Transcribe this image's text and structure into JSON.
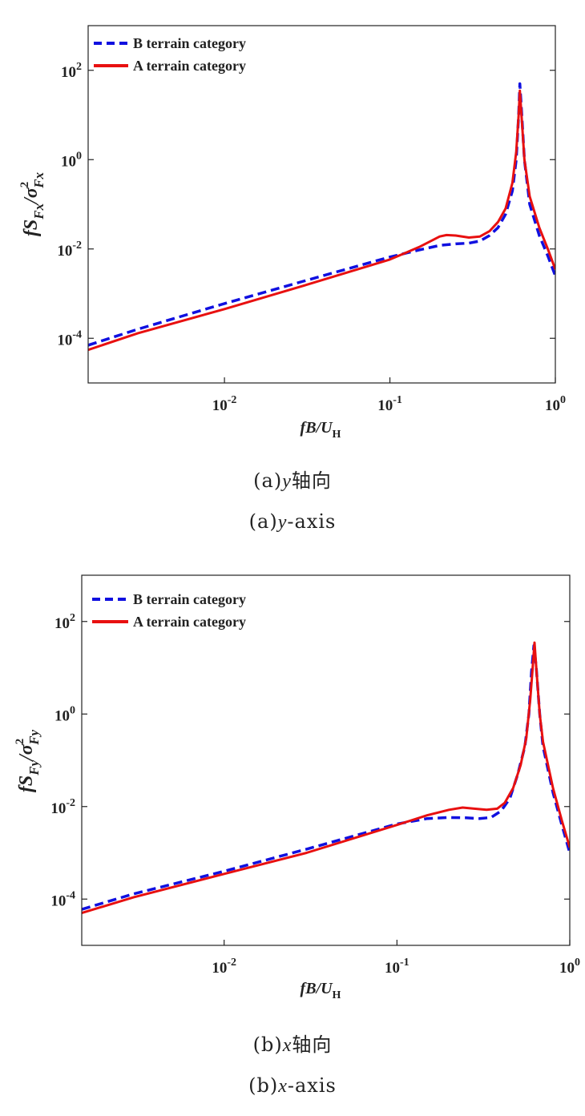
{
  "chart_data": [
    {
      "type": "line",
      "xscale": "log",
      "yscale": "log",
      "xlim": [
        0.0015,
        1.0
      ],
      "ylim": [
        1e-05,
        1000
      ],
      "x_ticks": [
        0.01,
        0.1,
        1
      ],
      "y_ticks": [
        0.0001,
        0.01,
        1,
        100
      ],
      "x_tick_labels": [
        {
          "base": "10",
          "exp": "-2"
        },
        {
          "base": "10",
          "exp": "-1"
        },
        {
          "base": "10",
          "exp": "0"
        }
      ],
      "y_tick_labels": [
        {
          "base": "10",
          "exp": "-4"
        },
        {
          "base": "10",
          "exp": "-2"
        },
        {
          "base": "10",
          "exp": "0"
        },
        {
          "base": "10",
          "exp": "2"
        }
      ],
      "xlabel": {
        "main": "fB/U",
        "sub": "H"
      },
      "ylabel": {
        "a": "fS",
        "b": "Fx",
        "c": "/σ",
        "d": "2",
        "e": "Fx"
      },
      "legend": {
        "position": "top-left",
        "entries": [
          "B terrain category",
          "A terrain category"
        ]
      },
      "grid": false,
      "series": [
        {
          "name": "B terrain category",
          "color": "#1010e0",
          "style": "dashed",
          "points": [
            [
              0.0015,
              7e-05
            ],
            [
              0.003,
              0.00016
            ],
            [
              0.01,
              0.0006
            ],
            [
              0.03,
              0.0019
            ],
            [
              0.1,
              0.0066
            ],
            [
              0.15,
              0.0095
            ],
            [
              0.2,
              0.012
            ],
            [
              0.25,
              0.013
            ],
            [
              0.3,
              0.0135
            ],
            [
              0.35,
              0.015
            ],
            [
              0.4,
              0.02
            ],
            [
              0.45,
              0.03
            ],
            [
              0.5,
              0.06
            ],
            [
              0.55,
              0.2
            ],
            [
              0.58,
              1.0
            ],
            [
              0.6,
              10
            ],
            [
              0.61,
              50
            ],
            [
              0.62,
              20
            ],
            [
              0.65,
              1.0
            ],
            [
              0.7,
              0.1
            ],
            [
              0.8,
              0.02
            ],
            [
              0.9,
              0.007
            ],
            [
              1.0,
              0.0025
            ]
          ]
        },
        {
          "name": "A terrain category",
          "color": "#e81010",
          "style": "solid",
          "points": [
            [
              0.0015,
              5.5e-05
            ],
            [
              0.003,
              0.00013
            ],
            [
              0.01,
              0.00045
            ],
            [
              0.03,
              0.0015
            ],
            [
              0.1,
              0.0058
            ],
            [
              0.15,
              0.011
            ],
            [
              0.2,
              0.019
            ],
            [
              0.22,
              0.0205
            ],
            [
              0.25,
              0.02
            ],
            [
              0.3,
              0.018
            ],
            [
              0.35,
              0.019
            ],
            [
              0.4,
              0.025
            ],
            [
              0.45,
              0.04
            ],
            [
              0.5,
              0.08
            ],
            [
              0.55,
              0.3
            ],
            [
              0.58,
              1.5
            ],
            [
              0.6,
              10
            ],
            [
              0.61,
              35
            ],
            [
              0.62,
              15
            ],
            [
              0.65,
              1.0
            ],
            [
              0.7,
              0.15
            ],
            [
              0.8,
              0.03
            ],
            [
              0.9,
              0.01
            ],
            [
              1.0,
              0.0035
            ]
          ]
        }
      ]
    },
    {
      "type": "line",
      "xscale": "log",
      "yscale": "log",
      "xlim": [
        0.0015,
        1.0
      ],
      "ylim": [
        1e-05,
        1000
      ],
      "x_ticks": [
        0.01,
        0.1,
        1
      ],
      "y_ticks": [
        0.0001,
        0.01,
        1,
        100
      ],
      "x_tick_labels": [
        {
          "base": "10",
          "exp": "-2"
        },
        {
          "base": "10",
          "exp": "-1"
        },
        {
          "base": "10",
          "exp": "0"
        }
      ],
      "y_tick_labels": [
        {
          "base": "10",
          "exp": "-4"
        },
        {
          "base": "10",
          "exp": "-2"
        },
        {
          "base": "10",
          "exp": "0"
        },
        {
          "base": "10",
          "exp": "2"
        }
      ],
      "xlabel": {
        "main": "fB/U",
        "sub": "H"
      },
      "ylabel": {
        "a": "fS",
        "b": "Fy",
        "c": "/σ",
        "d": "2",
        "e": "Fy"
      },
      "legend": {
        "position": "top-left",
        "entries": [
          "B terrain category",
          "A terrain category"
        ]
      },
      "grid": false,
      "series": [
        {
          "name": "B terrain category",
          "color": "#1010e0",
          "style": "dashed",
          "points": [
            [
              0.0015,
              6e-05
            ],
            [
              0.003,
              0.00013
            ],
            [
              0.01,
              0.0004
            ],
            [
              0.03,
              0.0012
            ],
            [
              0.1,
              0.0042
            ],
            [
              0.15,
              0.0055
            ],
            [
              0.2,
              0.0058
            ],
            [
              0.25,
              0.0057
            ],
            [
              0.3,
              0.0055
            ],
            [
              0.35,
              0.0058
            ],
            [
              0.4,
              0.008
            ],
            [
              0.45,
              0.015
            ],
            [
              0.5,
              0.05
            ],
            [
              0.55,
              0.2
            ],
            [
              0.58,
              1.0
            ],
            [
              0.6,
              8
            ],
            [
              0.62,
              30
            ],
            [
              0.64,
              10
            ],
            [
              0.67,
              1.0
            ],
            [
              0.7,
              0.2
            ],
            [
              0.8,
              0.02
            ],
            [
              0.9,
              0.004
            ],
            [
              1.0,
              0.001
            ]
          ]
        },
        {
          "name": "A terrain category",
          "color": "#e81010",
          "style": "solid",
          "points": [
            [
              0.0015,
              5e-05
            ],
            [
              0.003,
              0.00011
            ],
            [
              0.01,
              0.00035
            ],
            [
              0.03,
              0.001
            ],
            [
              0.1,
              0.004
            ],
            [
              0.15,
              0.0065
            ],
            [
              0.2,
              0.0085
            ],
            [
              0.24,
              0.0095
            ],
            [
              0.28,
              0.009
            ],
            [
              0.33,
              0.0085
            ],
            [
              0.38,
              0.009
            ],
            [
              0.42,
              0.012
            ],
            [
              0.47,
              0.025
            ],
            [
              0.52,
              0.08
            ],
            [
              0.56,
              0.3
            ],
            [
              0.59,
              2.0
            ],
            [
              0.61,
              10
            ],
            [
              0.625,
              35
            ],
            [
              0.64,
              10
            ],
            [
              0.67,
              1.0
            ],
            [
              0.7,
              0.25
            ],
            [
              0.8,
              0.025
            ],
            [
              0.9,
              0.005
            ],
            [
              1.0,
              0.0013
            ]
          ]
        }
      ]
    }
  ],
  "captions": {
    "a_cn_prefix": "(a)",
    "a_cn_var": "y",
    "a_cn_text": "轴向",
    "a_en_prefix": "(a)",
    "a_en_var": "y",
    "a_en_text": "-axis",
    "b_cn_prefix": "(b)",
    "b_cn_var": "x",
    "b_cn_text": "轴向",
    "b_en_prefix": "(b)",
    "b_en_var": "x",
    "b_en_text": "-axis"
  }
}
